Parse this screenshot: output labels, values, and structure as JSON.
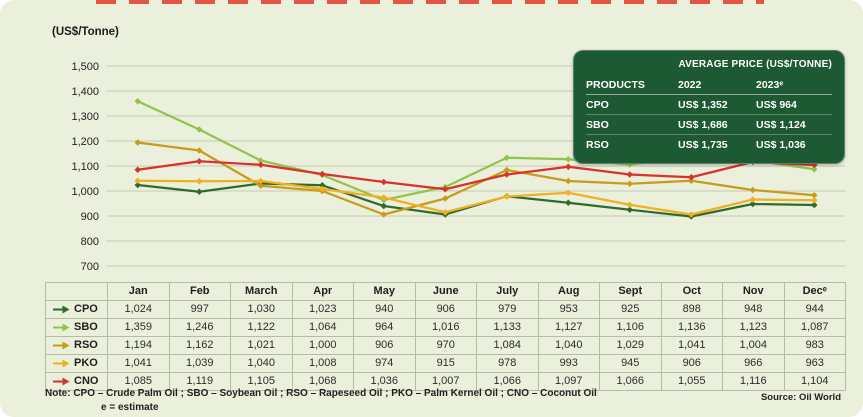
{
  "unit_label": "(US$/Tonne)",
  "avg_box": {
    "title": "AVERAGE PRICE (US$/TONNE)",
    "headers": [
      "PRODUCTS",
      "2022",
      "2023ᵉ"
    ],
    "rows": [
      {
        "product": "CPO",
        "y2022": "US$ 1,352",
        "y2023": "US$ 964"
      },
      {
        "product": "SBO",
        "y2022": "US$ 1,686",
        "y2023": "US$ 1,124"
      },
      {
        "product": "RSO",
        "y2022": "US$ 1,735",
        "y2023": "US$ 1,036"
      }
    ]
  },
  "chart_data": {
    "type": "line",
    "categories": [
      "Jan",
      "Feb",
      "March",
      "Apr",
      "May",
      "June",
      "July",
      "Aug",
      "Sept",
      "Oct",
      "Nov",
      "Decᵉ"
    ],
    "ylabel": "(US$/Tonne)",
    "ylim": [
      700,
      1500
    ],
    "ytick_step": 100,
    "grid": true,
    "legend_position": "table-left",
    "series": [
      {
        "name": "CPO",
        "color": "#2f6b2d",
        "values": [
          1024,
          997,
          1030,
          1023,
          940,
          906,
          979,
          953,
          925,
          898,
          948,
          944
        ]
      },
      {
        "name": "SBO",
        "color": "#92c34d",
        "values": [
          1359,
          1246,
          1122,
          1064,
          964,
          1016,
          1133,
          1127,
          1106,
          1136,
          1123,
          1087
        ]
      },
      {
        "name": "RSO",
        "color": "#c79b1c",
        "values": [
          1194,
          1162,
          1021,
          1000,
          906,
          970,
          1084,
          1040,
          1029,
          1041,
          1004,
          983
        ]
      },
      {
        "name": "PKO",
        "color": "#f0b01f",
        "values": [
          1041,
          1039,
          1040,
          1008,
          974,
          915,
          978,
          993,
          945,
          906,
          966,
          963
        ]
      },
      {
        "name": "CNO",
        "color": "#d8322a",
        "values": [
          1085,
          1119,
          1105,
          1068,
          1036,
          1007,
          1066,
          1097,
          1066,
          1055,
          1116,
          1104
        ]
      }
    ]
  },
  "footer": {
    "note_line1": "Note: CPO – Crude Palm Oil ; SBO – Soybean Oil ; RSO – Rapeseed Oil ; PKO – Palm Kernel Oil ; CNO – Coconut Oil",
    "note_line2": "e = estimate",
    "source": "Source: Oil World"
  },
  "colors": {
    "card_background": "#eaf0db",
    "panel_background": "#1d5a34",
    "gridline": "#c6cab6",
    "table_border": "#b5bba6"
  }
}
